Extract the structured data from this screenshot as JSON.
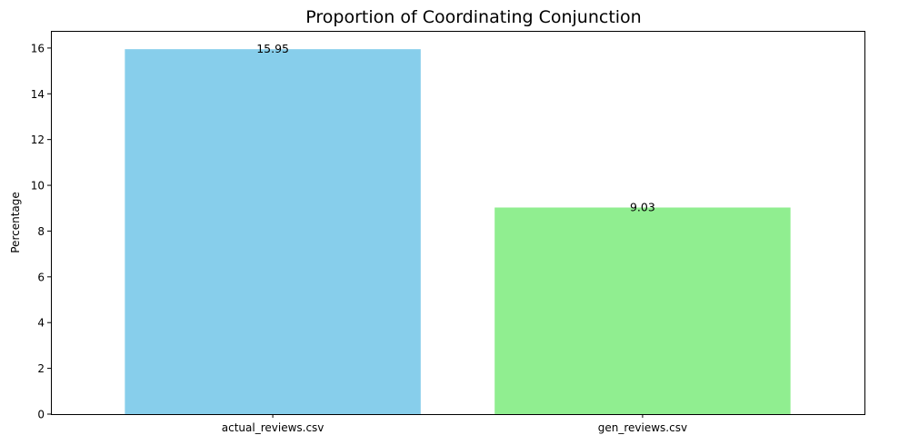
{
  "chart_data": {
    "type": "bar",
    "title": "Proportion of Coordinating Conjunction",
    "xlabel": "",
    "ylabel": "Percentage",
    "categories": [
      "actual_reviews.csv",
      "gen_reviews.csv"
    ],
    "values": [
      15.95,
      9.03
    ],
    "value_labels": [
      "15.95",
      "9.03"
    ],
    "colors": [
      "#87ceeb",
      "#90ee90"
    ],
    "ylim": [
      0,
      16.75
    ],
    "yticks": [
      0,
      2,
      4,
      6,
      8,
      10,
      12,
      14,
      16
    ],
    "ytick_labels": [
      "0",
      "2",
      "4",
      "6",
      "8",
      "10",
      "12",
      "14",
      "16"
    ],
    "grid": false
  }
}
